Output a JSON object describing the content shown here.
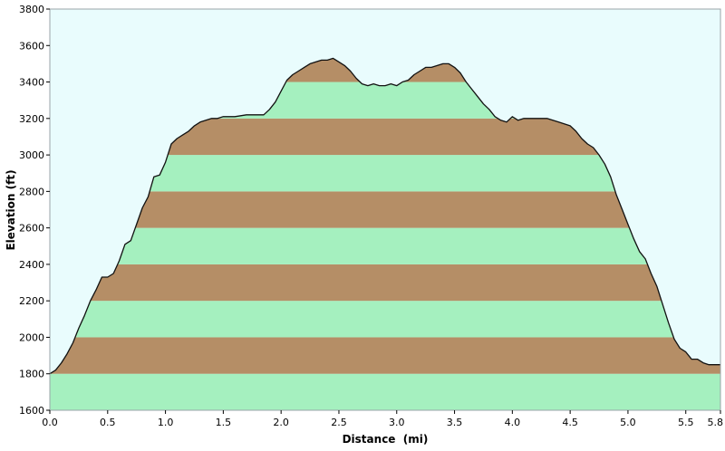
{
  "chart_data": {
    "type": "area",
    "title": "",
    "xlabel": "Distance  (mi)",
    "ylabel": "Elevation (ft)",
    "xlim": [
      0.0,
      5.8
    ],
    "ylim": [
      1600,
      3800
    ],
    "x_ticks": [
      "0.0",
      "0.5",
      "1.0",
      "1.5",
      "2.0",
      "2.5",
      "3.0",
      "3.5",
      "4.0",
      "4.5",
      "5.0",
      "5.5",
      "5.8"
    ],
    "x_tick_values": [
      0.0,
      0.5,
      1.0,
      1.5,
      2.0,
      2.5,
      3.0,
      3.5,
      4.0,
      4.5,
      5.0,
      5.5,
      5.8
    ],
    "y_ticks": [
      "3800",
      "3600",
      "3400",
      "3200",
      "3000",
      "2800",
      "2600",
      "2400",
      "2200",
      "2000",
      "1800",
      "1600"
    ],
    "y_tick_values": [
      3800,
      3600,
      3400,
      3200,
      3000,
      2800,
      2600,
      2400,
      2200,
      2000,
      1800,
      1600
    ],
    "colors": {
      "plot_background": "#e9fcfd",
      "band_brown": "#b58e66",
      "band_green": "#a5f0bf",
      "profile_line": "#111111"
    },
    "series": [
      {
        "x": [
          0.0,
          0.05,
          0.1,
          0.15,
          0.2,
          0.25,
          0.3,
          0.35,
          0.4,
          0.45,
          0.5,
          0.55,
          0.6,
          0.65,
          0.7,
          0.75,
          0.8,
          0.85,
          0.9,
          0.95,
          1.0,
          1.05,
          1.1,
          1.15,
          1.2,
          1.25,
          1.3,
          1.35,
          1.4,
          1.45,
          1.5,
          1.6,
          1.7,
          1.8,
          1.85,
          1.9,
          1.95,
          2.0,
          2.05,
          2.1,
          2.15,
          2.2,
          2.25,
          2.3,
          2.35,
          2.4,
          2.45,
          2.5,
          2.55,
          2.6,
          2.65,
          2.7,
          2.75,
          2.8,
          2.85,
          2.9,
          2.95,
          3.0,
          3.05,
          3.1,
          3.15,
          3.2,
          3.25,
          3.3,
          3.35,
          3.4,
          3.45,
          3.5,
          3.55,
          3.6,
          3.65,
          3.7,
          3.75,
          3.8,
          3.85,
          3.9,
          3.95,
          4.0,
          4.05,
          4.1,
          4.2,
          4.3,
          4.4,
          4.5,
          4.55,
          4.6,
          4.65,
          4.7,
          4.75,
          4.8,
          4.85,
          4.9,
          4.95,
          5.0,
          5.05,
          5.1,
          5.15,
          5.2,
          5.25,
          5.3,
          5.35,
          5.4,
          5.45,
          5.5,
          5.55,
          5.6,
          5.65,
          5.7,
          5.75,
          5.8
        ],
        "y": [
          1800,
          1820,
          1860,
          1910,
          1970,
          2050,
          2120,
          2200,
          2260,
          2330,
          2330,
          2350,
          2420,
          2510,
          2530,
          2620,
          2710,
          2770,
          2880,
          2890,
          2960,
          3060,
          3090,
          3110,
          3130,
          3160,
          3180,
          3190,
          3200,
          3200,
          3210,
          3210,
          3220,
          3220,
          3220,
          3250,
          3290,
          3350,
          3410,
          3440,
          3460,
          3480,
          3500,
          3510,
          3520,
          3520,
          3530,
          3510,
          3490,
          3460,
          3420,
          3390,
          3380,
          3390,
          3380,
          3380,
          3390,
          3380,
          3400,
          3410,
          3440,
          3460,
          3480,
          3480,
          3490,
          3500,
          3500,
          3480,
          3450,
          3400,
          3360,
          3320,
          3280,
          3250,
          3210,
          3190,
          3180,
          3210,
          3190,
          3200,
          3200,
          3200,
          3180,
          3160,
          3130,
          3090,
          3060,
          3040,
          3000,
          2950,
          2880,
          2780,
          2700,
          2620,
          2540,
          2470,
          2430,
          2350,
          2280,
          2180,
          2080,
          1990,
          1940,
          1920,
          1880,
          1880,
          1860,
          1850,
          1850,
          1850
        ],
        "name": ""
      }
    ],
    "grid": false
  }
}
